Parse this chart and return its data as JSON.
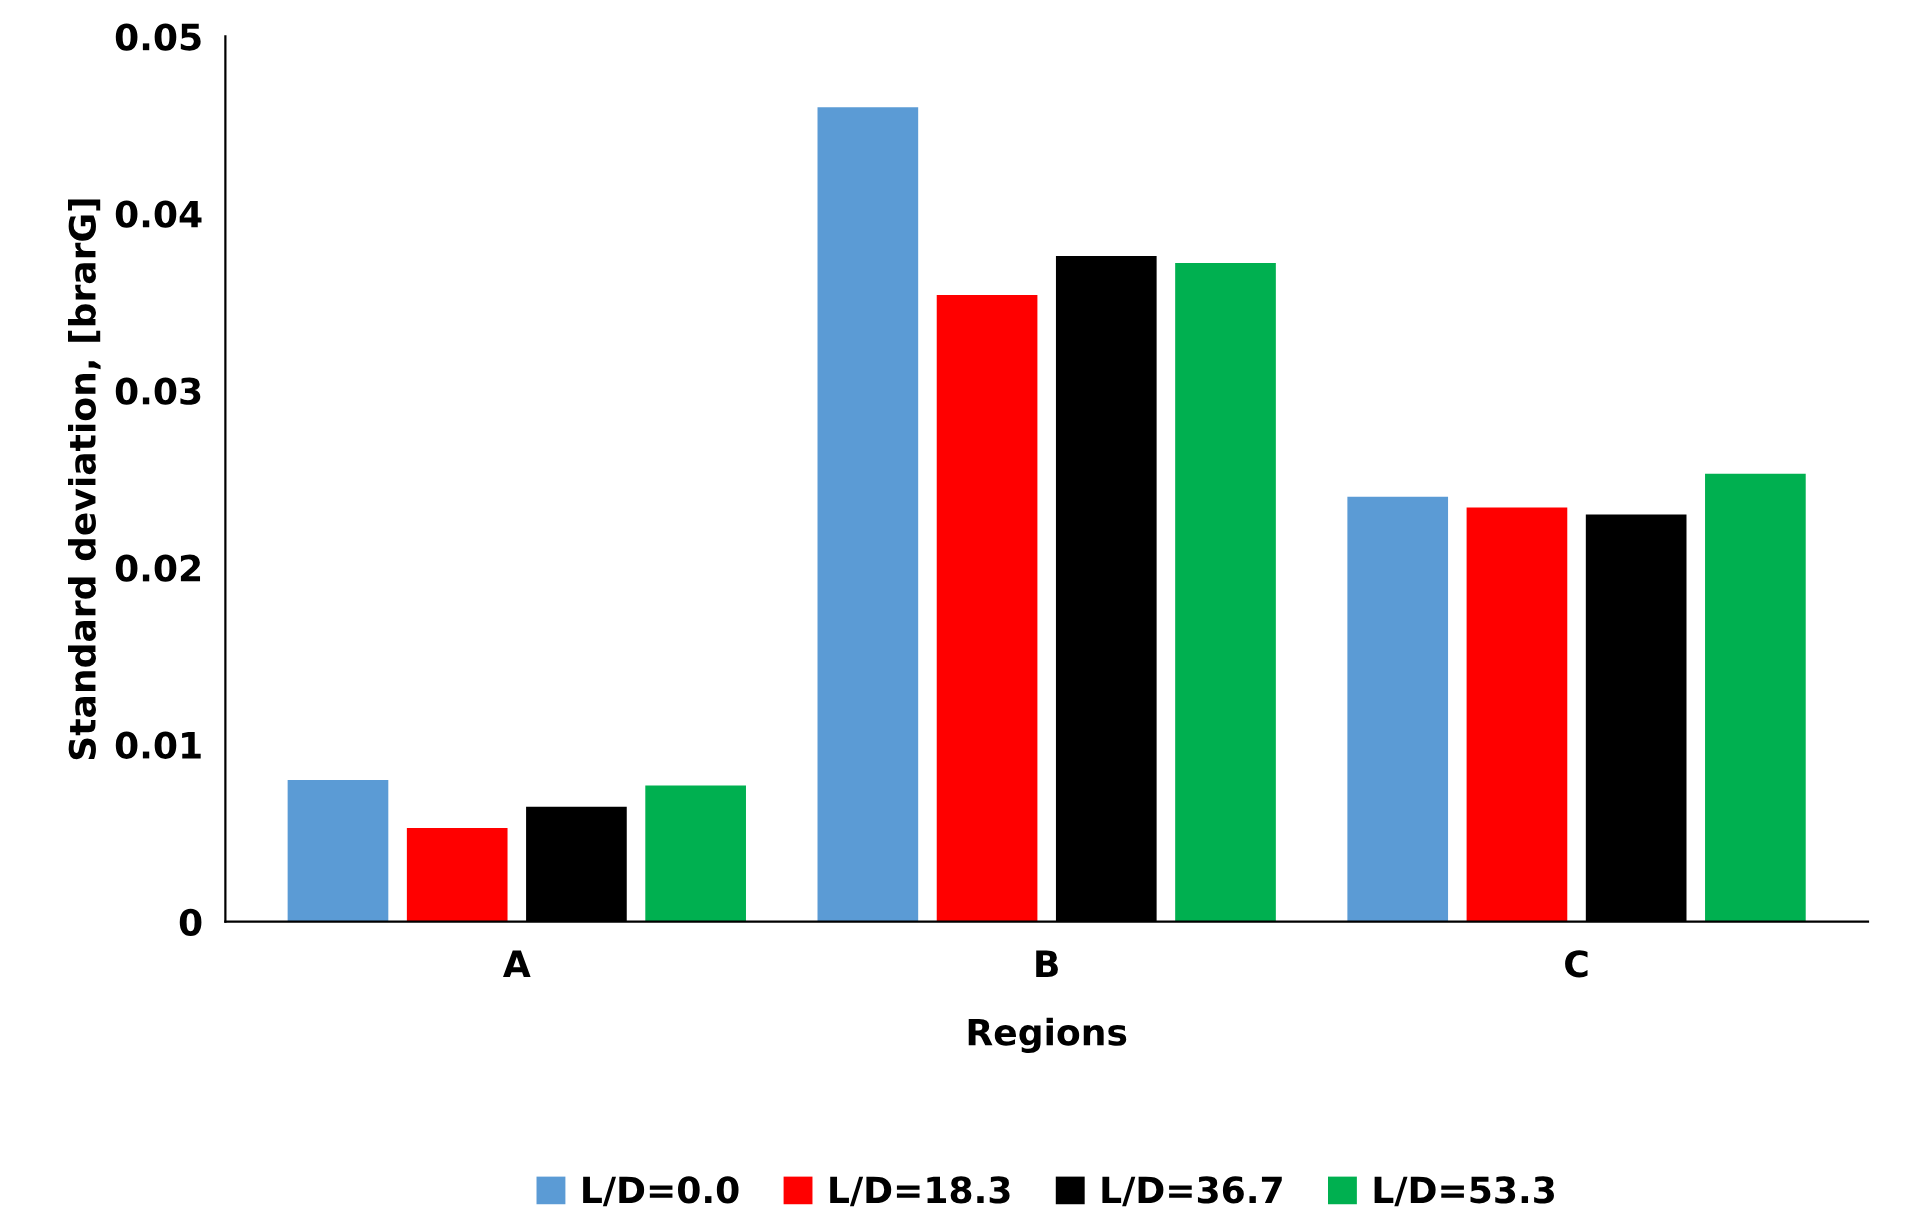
{
  "chart_data": {
    "type": "bar",
    "xlabel": "Regions",
    "ylabel": "Standard deviation, [brarG]",
    "categories": [
      "A",
      "B",
      "C"
    ],
    "series": [
      {
        "name": "L/D=0.0",
        "color": "#5b9bd5",
        "values": [
          0.008,
          0.046,
          0.024
        ]
      },
      {
        "name": "L/D=18.3",
        "color": "#ff0000",
        "values": [
          0.0053,
          0.0354,
          0.0234
        ]
      },
      {
        "name": "L/D=36.7",
        "color": "#000000",
        "values": [
          0.0065,
          0.0376,
          0.023
        ]
      },
      {
        "name": "L/D=53.3",
        "color": "#00b050",
        "values": [
          0.0077,
          0.0372,
          0.0253
        ]
      }
    ],
    "ylim": [
      0,
      0.05
    ],
    "yticks": [
      {
        "value": 0,
        "label": "0"
      },
      0.01,
      0.02,
      0.03,
      0.04,
      0.05
    ],
    "grid": false,
    "legend": "bottom"
  }
}
